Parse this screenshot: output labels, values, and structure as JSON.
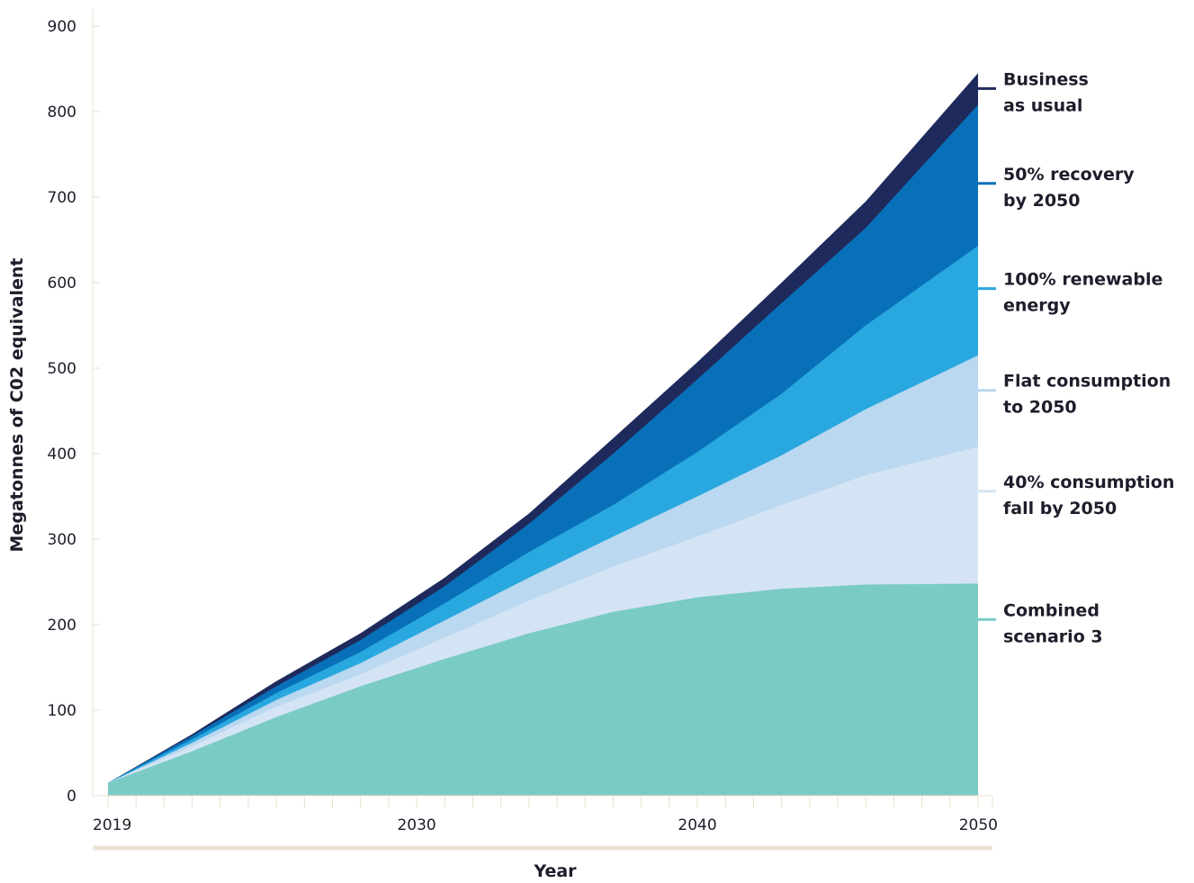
{
  "chart_data": {
    "type": "area",
    "stacked": false,
    "xlabel": "Year",
    "ylabel": "Megatonnes of C02 equivalent",
    "ylim": [
      0,
      900
    ],
    "xlim": [
      2019,
      2050
    ],
    "x_ticks": [
      "2019",
      "2030",
      "2040",
      "2050"
    ],
    "y_ticks": [
      "0",
      "100",
      "200",
      "300",
      "400",
      "500",
      "600",
      "700",
      "800",
      "900"
    ],
    "grid": false,
    "legend_position": "right",
    "x": [
      2019,
      2022,
      2025,
      2028,
      2031,
      2034,
      2037,
      2040,
      2043,
      2046,
      2050
    ],
    "series": [
      {
        "name": "Business as usual",
        "color": "#1f2a5c",
        "values": [
          15,
          72,
          134,
          190,
          255,
          330,
          418,
          507,
          600,
          695,
          845
        ]
      },
      {
        "name": "50% recovery by 2050",
        "color": "#0870b8",
        "values": [
          15,
          70,
          128,
          182,
          245,
          318,
          400,
          487,
          576,
          664,
          808
        ]
      },
      {
        "name": "100% renewable energy",
        "color": "#29a8e0",
        "values": [
          15,
          66,
          120,
          168,
          225,
          285,
          340,
          402,
          470,
          550,
          643
        ]
      },
      {
        "name": "Flat consumption to 2050",
        "color": "#bad8ef",
        "values": [
          15,
          62,
          112,
          155,
          205,
          255,
          303,
          350,
          398,
          452,
          515
        ]
      },
      {
        "name": "40% consumption fall by 2050",
        "color": "#d4e4f4",
        "values": [
          15,
          58,
          104,
          142,
          185,
          228,
          268,
          303,
          340,
          375,
          408
        ]
      },
      {
        "name": "Combined scenario 3",
        "color": "#7bcbc5",
        "values": [
          15,
          52,
          92,
          128,
          160,
          190,
          215,
          232,
          242,
          247,
          248
        ]
      }
    ],
    "legend": [
      {
        "lines": [
          "Business",
          "as usual"
        ],
        "color": "#1f2a5c",
        "anchor": 827
      },
      {
        "lines": [
          "50% recovery",
          "by 2050"
        ],
        "color": "#0870b8",
        "anchor": 716
      },
      {
        "lines": [
          "100% renewable",
          "energy"
        ],
        "color": "#29a8e0",
        "anchor": 593
      },
      {
        "lines": [
          "Flat consumption",
          "to 2050"
        ],
        "color": "#bad8ef",
        "anchor": 474
      },
      {
        "lines": [
          "40% consumption",
          "fall by 2050"
        ],
        "color": "#d4e4f4",
        "anchor": 356
      },
      {
        "lines": [
          "Combined",
          "scenario 3"
        ],
        "color": "#7bcbc5",
        "anchor": 206
      }
    ],
    "colors": {
      "axis": "#e9e2cf",
      "x_axis_band": "#ece3d4",
      "text": "#1d1d2b"
    }
  }
}
